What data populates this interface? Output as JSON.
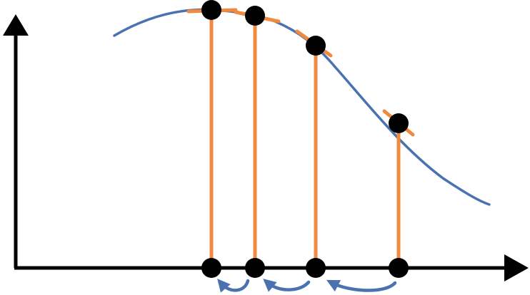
{
  "colors": {
    "background": "#ffffff",
    "axis": "#000000",
    "curve": "#4a72b0",
    "tangent": "#f08a3e",
    "stem": "#f08a3e",
    "point": "#000000",
    "return_arrow": "#4a72b0"
  },
  "diagram": {
    "type": "gradient-descent-illustration",
    "axes": {
      "x_arrow": true,
      "y_arrow": true
    },
    "curve": {
      "shape": "decreasing-sigmoid",
      "peak_at_left": true
    },
    "points_count": 4,
    "return_arrows_count": 3
  }
}
